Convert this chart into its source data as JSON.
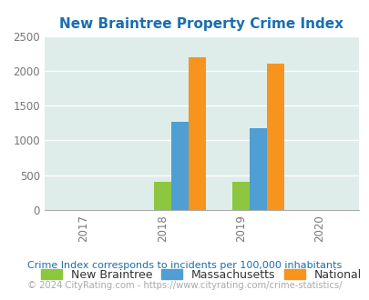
{
  "title": "New Braintree Property Crime Index",
  "title_color": "#1a6faf",
  "years": [
    2017,
    2018,
    2019,
    2020
  ],
  "bar_groups": {
    "2018": {
      "new_braintree": 400,
      "massachusetts": 1270,
      "national": 2200
    },
    "2019": {
      "new_braintree": 400,
      "massachusetts": 1175,
      "national": 2100
    }
  },
  "colors": {
    "new_braintree": "#8dc63f",
    "massachusetts": "#4f9fd4",
    "national": "#f7941d"
  },
  "ylim": [
    0,
    2500
  ],
  "yticks": [
    0,
    500,
    1000,
    1500,
    2000,
    2500
  ],
  "xlim": [
    2016.5,
    2020.5
  ],
  "bg_color": "#deecea",
  "legend_labels": [
    "New Braintree",
    "Massachusetts",
    "National"
  ],
  "footnote1": "Crime Index corresponds to incidents per 100,000 inhabitants",
  "footnote2": "© 2024 CityRating.com - https://www.cityrating.com/crime-statistics/",
  "footnote1_color": "#1a6faf",
  "footnote2_color": "#aaaaaa",
  "bar_width": 0.22
}
